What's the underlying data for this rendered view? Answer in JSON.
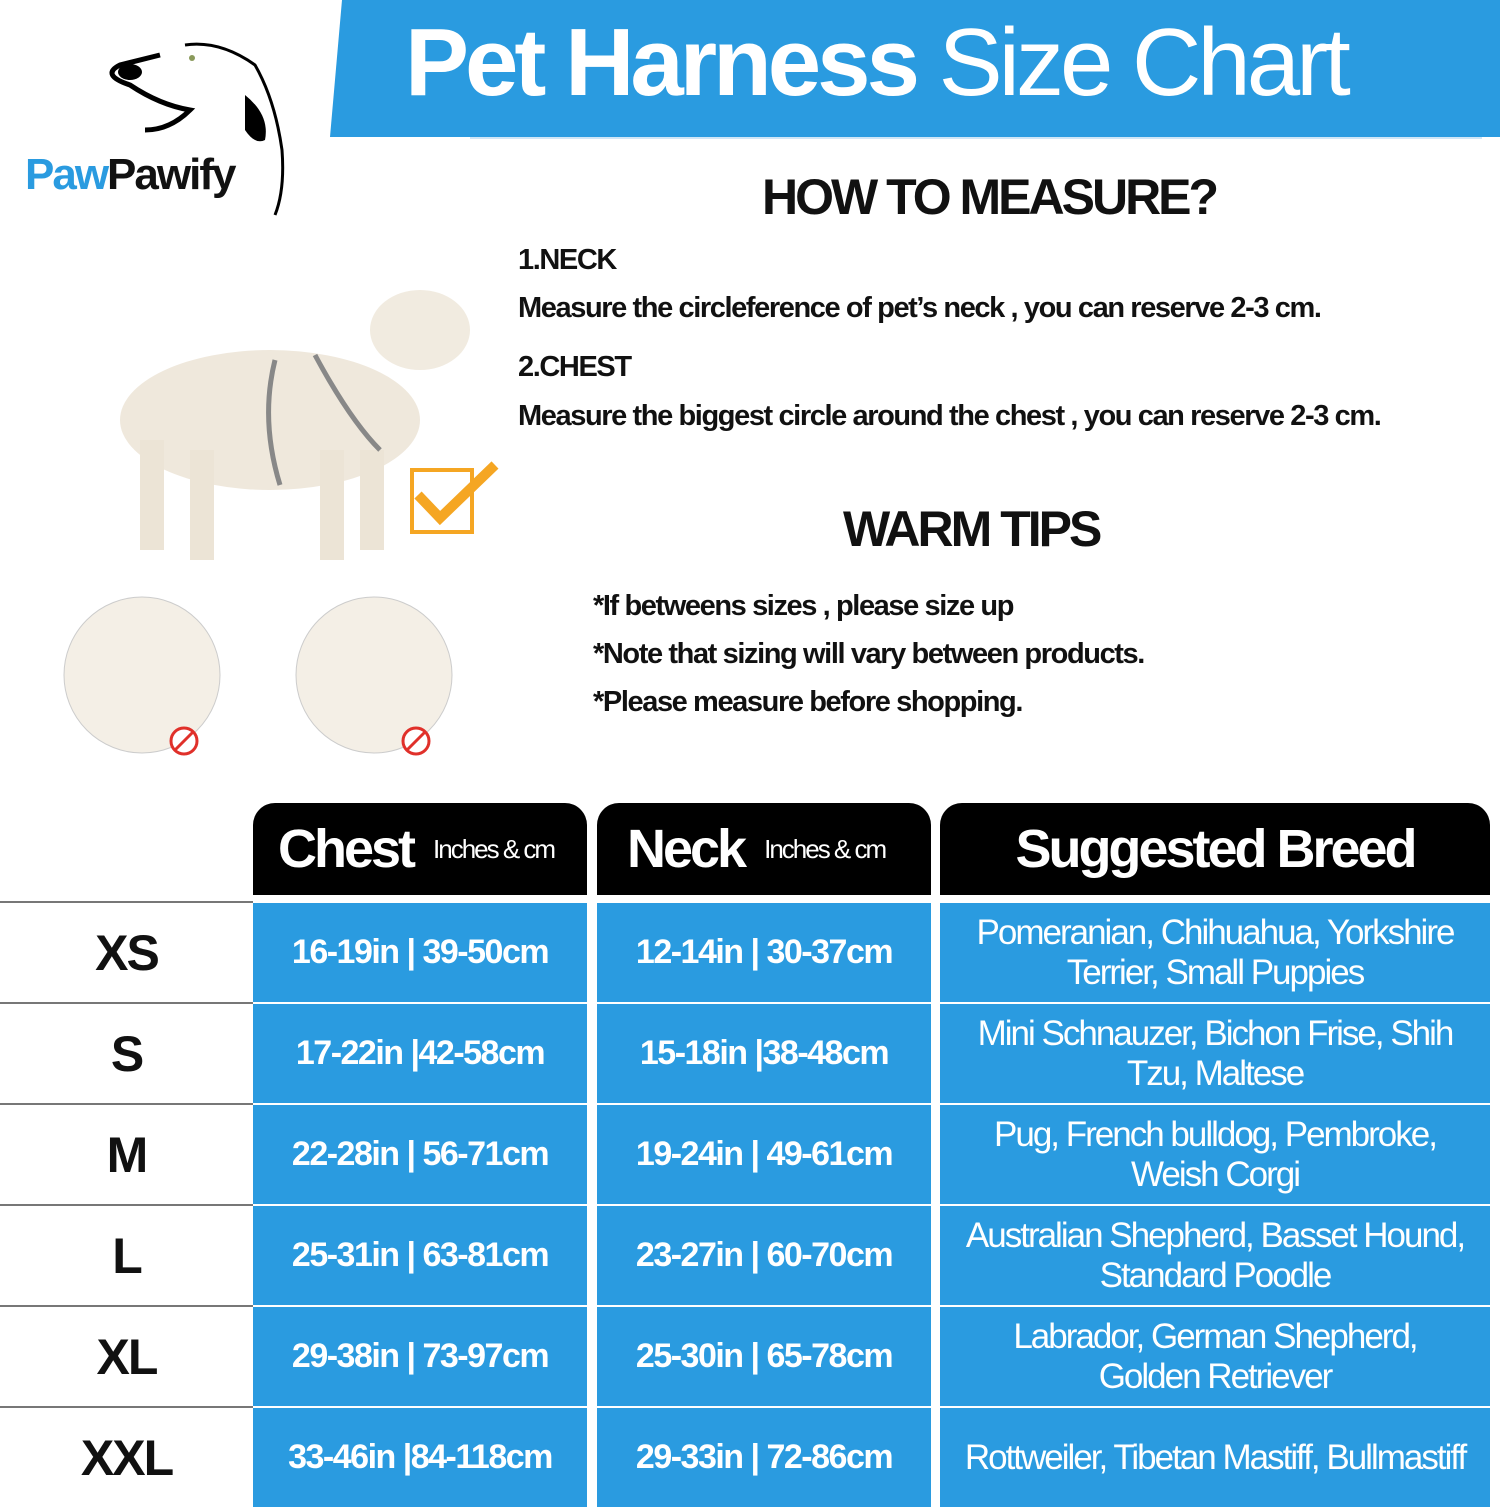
{
  "brand": {
    "part1": "Paw",
    "part2": "Pawify"
  },
  "title": {
    "bold": "Pet Harness",
    "light": "Size Chart"
  },
  "measure": {
    "heading": "HOW TO MEASURE?",
    "neck_label": "1.NECK",
    "neck_text": "Measure the circleference of pet’s neck , you can reserve 2-3 cm.",
    "chest_label": "2.CHEST",
    "chest_text": "Measure the biggest circle around the chest , you can reserve 2-3 cm."
  },
  "tips": {
    "heading": "WARM TIPS",
    "items": [
      "*If betweens sizes , please size up",
      "*Note that sizing will vary between products.",
      "*Please measure before shopping."
    ]
  },
  "colors": {
    "accent": "#2a9be0",
    "header": "#000000",
    "wrong": "#e0302a",
    "check": "#f5a623"
  },
  "table": {
    "headers": {
      "chest": "Chest",
      "chest_unit": "Inches & cm",
      "neck": "Neck",
      "neck_unit": "Inches & cm",
      "breed": "Suggested Breed"
    },
    "rows": [
      {
        "size": "XS",
        "chest": "16-19in | 39-50cm",
        "neck": "12-14in | 30-37cm",
        "breed": "Pomeranian,  Chihuahua, Yorkshire Terrier,  Small Puppies"
      },
      {
        "size": "S",
        "chest": "17-22in |42-58cm",
        "neck": "15-18in |38-48cm",
        "breed": "Mini Schnauzer,  Bichon Frise, Shih Tzu,  Maltese"
      },
      {
        "size": "M",
        "chest": "22-28in | 56-71cm",
        "neck": "19-24in | 49-61cm",
        "breed": "Pug,  French bulldog,  Pembroke, Weish Corgi"
      },
      {
        "size": "L",
        "chest": "25-31in | 63-81cm",
        "neck": "23-27in | 60-70cm",
        "breed": "Australian Shepherd,  Basset Hound,  Standard Poodle"
      },
      {
        "size": "XL",
        "chest": "29-38in | 73-97cm",
        "neck": "25-30in | 65-78cm",
        "breed": "Labrador,  German Shepherd, Golden Retriever"
      },
      {
        "size": "XXL",
        "chest": "33-46in |84-118cm",
        "neck": "29-33in | 72-86cm",
        "breed": "Rottweiler,  Tibetan Mastiff, Bullmastiff"
      }
    ]
  }
}
